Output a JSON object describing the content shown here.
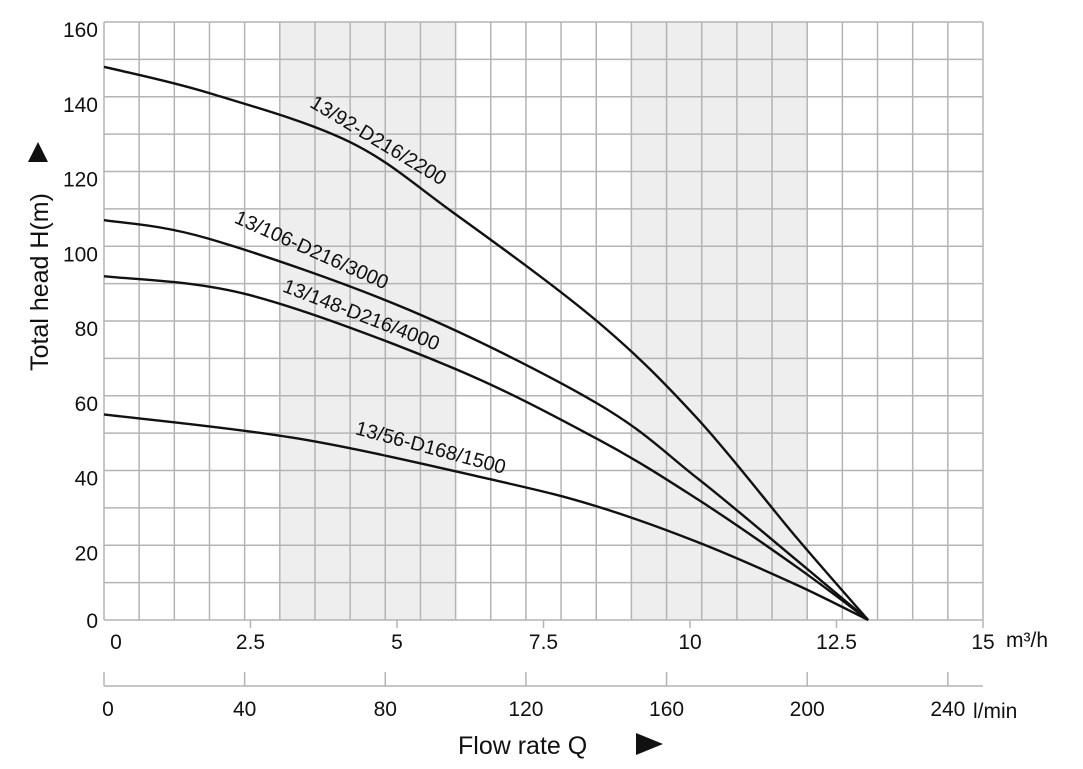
{
  "chart_data": {
    "type": "line",
    "xlabel": "Flow rate Q",
    "ylabel": "Total head H(m)",
    "x_unit": "m³/h",
    "x2_unit": "l/min",
    "xlim": [
      0,
      15
    ],
    "ylim": [
      0,
      160
    ],
    "x_ticks": [
      "0",
      "2.5",
      "5",
      "7.5",
      "10",
      "12.5",
      "15"
    ],
    "x_tick_values": [
      0,
      2.5,
      5,
      7.5,
      10,
      12.5,
      15
    ],
    "x2_ticks": [
      "0",
      "40",
      "80",
      "120",
      "160",
      "200",
      "240"
    ],
    "x2_tick_values": [
      0,
      40,
      80,
      120,
      160,
      200,
      240
    ],
    "y_ticks": [
      "0",
      "20",
      "40",
      "60",
      "80",
      "100",
      "120",
      "140",
      "160"
    ],
    "y_tick_values": [
      0,
      20,
      40,
      60,
      80,
      100,
      120,
      140,
      160
    ],
    "grid": true,
    "grid_x_step": 0.6,
    "grid_y_step": 10,
    "shaded_ranges_x": [
      [
        3.0,
        6.0
      ],
      [
        9.0,
        12.0
      ]
    ],
    "colors": {
      "line": "#111111",
      "grid": "#b4b4b4",
      "shade": "#eeeeee"
    },
    "series": [
      {
        "name": "13/92-D216/2200",
        "x": [
          0,
          1.79,
          4.18,
          5.96,
          8.41,
          10.12,
          11.82,
          13.04
        ],
        "y": [
          148,
          141,
          128,
          109,
          80,
          54,
          22,
          0
        ]
      },
      {
        "name": "13/106-D216/3000",
        "x": [
          0,
          1.79,
          5.2,
          8.41,
          10.12,
          11.82,
          13.04
        ],
        "y": [
          107,
          102,
          83,
          58,
          38,
          16,
          0
        ]
      },
      {
        "name": "13/148-D216/4000",
        "x": [
          0,
          2.47,
          5.87,
          8.41,
          10.12,
          11.82,
          13.04
        ],
        "y": [
          92,
          87,
          68,
          48.5,
          32.4,
          14.2,
          0
        ]
      },
      {
        "name": "13/56-D168/1500",
        "x": [
          0,
          3.33,
          6.72,
          8.41,
          10.12,
          11.82,
          13.04
        ],
        "y": [
          55,
          48.5,
          37.2,
          30.4,
          20.9,
          9.4,
          0
        ]
      }
    ]
  }
}
